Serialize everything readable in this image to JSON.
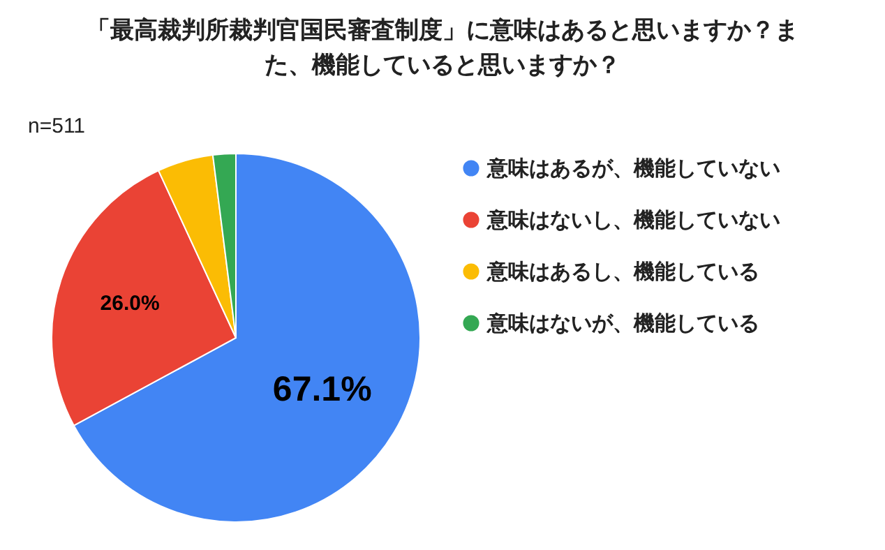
{
  "chart_data": {
    "type": "pie",
    "title": "「最高裁判所裁判官国民審査制度」に意味はあると思いますか？また、機能していると思いますか？",
    "categories": [
      "意味はあるが、機能していない",
      "意味はないし、機能していない",
      "意味はあるし、機能している",
      "意味はないが、機能している"
    ],
    "values": [
      67.1,
      26.0,
      4.9,
      2.0
    ],
    "colors": [
      "#4285f4",
      "#ea4335",
      "#fbbc04",
      "#34a853"
    ],
    "value_labels": [
      "67.1%",
      "26.0%",
      null,
      null
    ],
    "legend": "right",
    "annotations": [
      "n=511"
    ]
  }
}
